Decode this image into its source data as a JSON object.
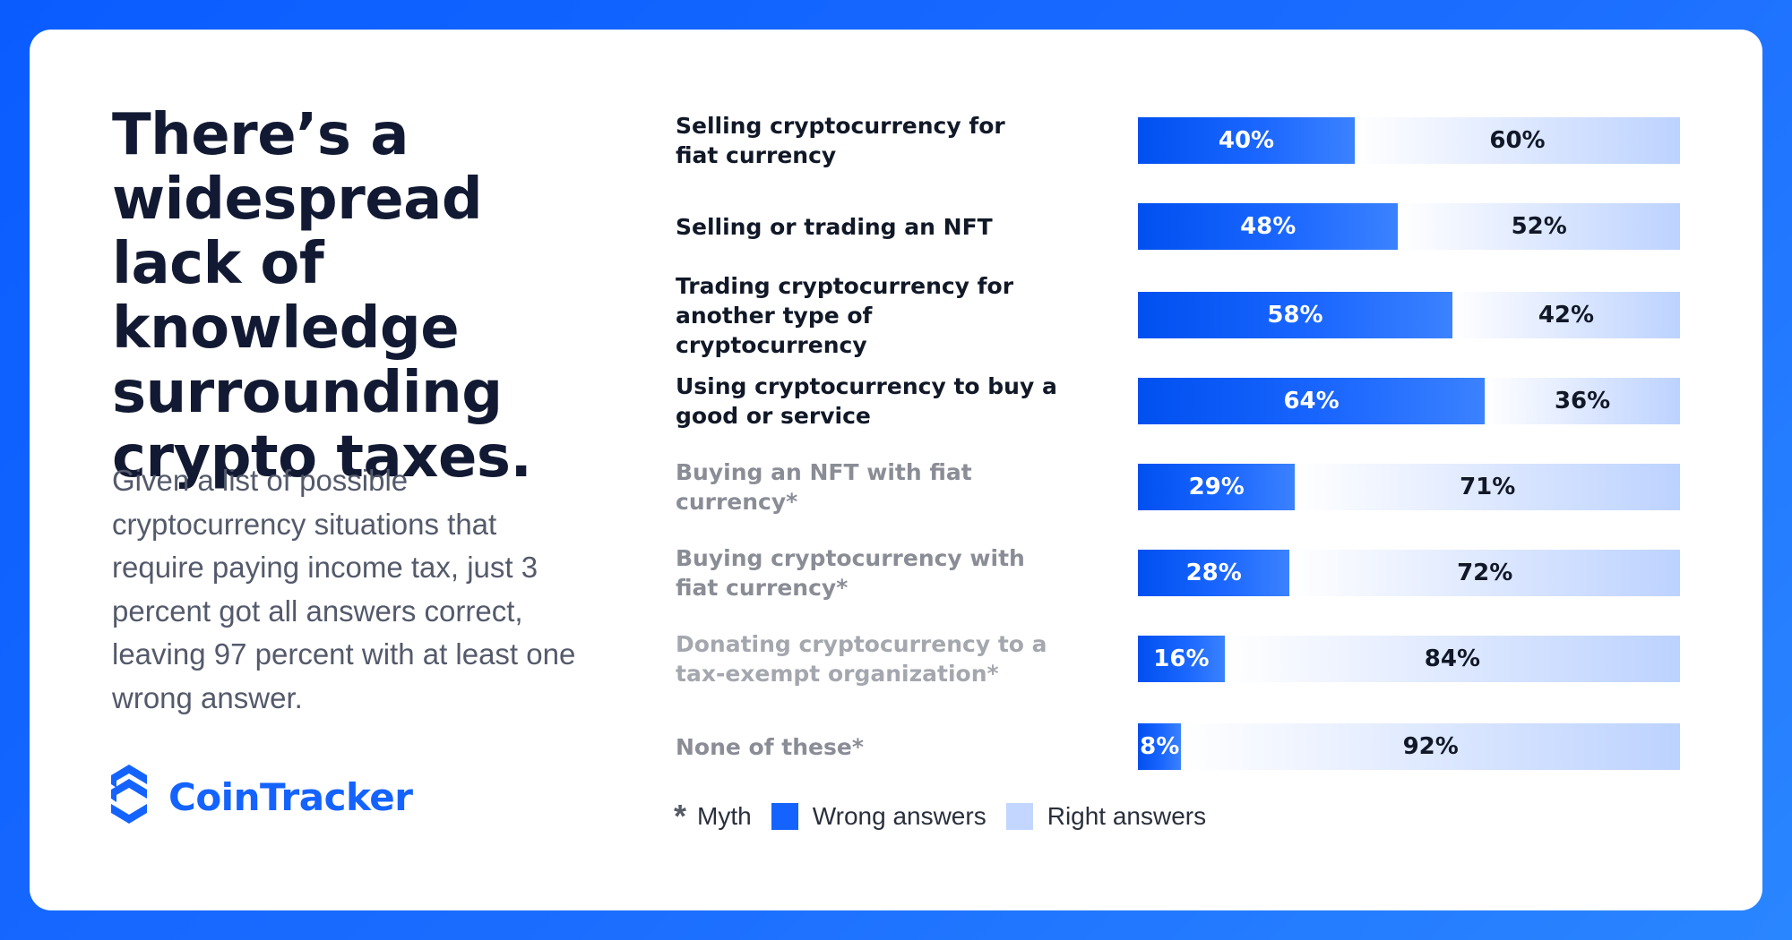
{
  "headline": "There’s a widespread lack of knowledge surrounding crypto taxes.",
  "description": "Given a list of possible cryptocurrency situations that require paying income tax, just 3 percent got all answers correct, leaving 97 percent with at least one wrong answer.",
  "brand": {
    "name": "CoinTracker",
    "icon": "cointracker-logo-icon",
    "color": "#1463ff"
  },
  "colors": {
    "wrong": "#1463ff",
    "right": "#c3d6ff",
    "background": "#0a5cff"
  },
  "chart_data": {
    "type": "bar",
    "orientation": "horizontal",
    "stacked": true,
    "categories": [
      "Selling cryptocurrency for fiat currency",
      "Selling or trading an NFT",
      "Trading cryptocurrency for another type of cryptocurrency",
      "Using cryptocurrency to buy a good or service",
      "Buying an NFT with fiat currency*",
      "Buying cryptocurrency with fiat currency*",
      "Donating cryptocurrency to a tax-exempt organization*",
      "None of these*"
    ],
    "myth": [
      false,
      false,
      false,
      false,
      true,
      true,
      true,
      true
    ],
    "series": [
      {
        "name": "Wrong answers",
        "values": [
          40,
          48,
          58,
          64,
          29,
          28,
          16,
          8
        ],
        "labels": [
          "40%",
          "48%",
          "58%",
          "64%",
          "29%",
          "28%",
          "16%",
          "8%"
        ]
      },
      {
        "name": "Right answers",
        "values": [
          60,
          52,
          42,
          36,
          71,
          72,
          84,
          92
        ],
        "labels": [
          "60%",
          "52%",
          "42%",
          "36%",
          "71%",
          "72%",
          "84%",
          "92%"
        ]
      }
    ],
    "xlim": [
      0,
      100
    ],
    "legend": {
      "position": "bottom-left",
      "items": [
        {
          "symbol": "*",
          "label": "Myth"
        },
        {
          "symbol": "swatch-wrong",
          "label": "Wrong answers"
        },
        {
          "symbol": "swatch-right",
          "label": "Right answers"
        }
      ]
    }
  }
}
